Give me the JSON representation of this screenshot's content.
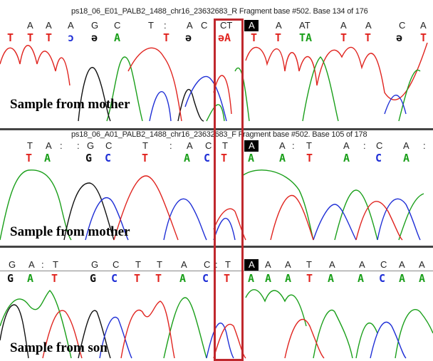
{
  "colors": {
    "A": "#1a9f1a",
    "C": "#1f2fd6",
    "G": "#111111",
    "T": "#e0241f",
    "highlight": "#c0282d"
  },
  "panels": [
    {
      "header": "ps18_06_E01_PALB2_1488_chr16_23632683_R Fragment base #502. Base 134 of 176",
      "seq": [
        "A",
        "A",
        "A",
        "G",
        "C",
        "T",
        ":",
        "A",
        "C",
        "CT",
        "A",
        "A",
        "AT",
        "A",
        "A",
        "C",
        "A"
      ],
      "calls": [
        "T",
        "T",
        "T",
        "ɔ",
        "ə",
        "A",
        "T",
        "ə",
        "əA",
        "T",
        "T",
        "TA",
        "T",
        "T",
        "ə",
        "T"
      ],
      "label": "Sample from mother"
    },
    {
      "header": "ps18_06_A01_PALB2_1488_chr16_23632683_F Fragment base #502. Base 105 of 178",
      "seq": [
        "T",
        "A",
        ":",
        ":",
        "G",
        "C",
        "T",
        ":",
        "A",
        "C",
        "T",
        "A",
        "A",
        ":",
        "T",
        "A",
        ":",
        "C",
        "A",
        ":"
      ],
      "calls": [
        "T",
        "A",
        "G",
        "C",
        "T",
        "A",
        "C",
        "T",
        "A",
        "A",
        "T",
        "A",
        "C",
        "A"
      ],
      "label": "Sample from mother"
    },
    {
      "header": "",
      "seq": [
        "G",
        "A",
        ":",
        "T",
        "G",
        "C",
        "T",
        "T",
        "A",
        "C",
        ":",
        "T",
        "A",
        "A",
        "A",
        "T",
        "A",
        "A",
        "C",
        "A",
        "A"
      ],
      "calls": [
        "G",
        "A",
        "T",
        "G",
        "C",
        "T",
        "T",
        "A",
        "C",
        "T",
        "A",
        "A",
        "A",
        "T",
        "A",
        "A",
        "C",
        "A",
        "A"
      ],
      "label": "Sample from son"
    }
  ]
}
